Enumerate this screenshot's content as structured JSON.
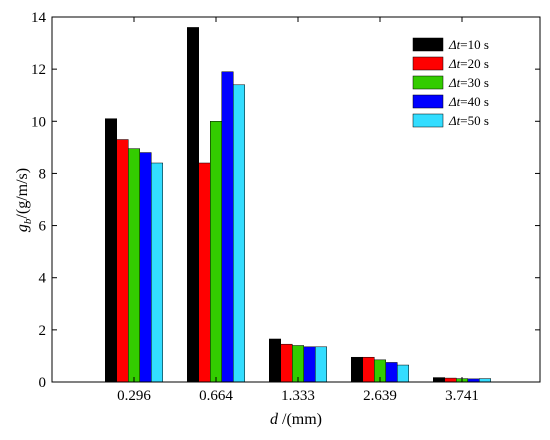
{
  "chart_data": {
    "type": "bar",
    "xlabel_var": "d",
    "xlabel_unit": " /(mm)",
    "ylabel_var": "g",
    "ylabel_sub": "b",
    "ylabel_unit": "/(g/m/s)",
    "categories": [
      "0.296",
      "0.664",
      "1.333",
      "2.639",
      "3.741"
    ],
    "yticks": [
      "0",
      "2",
      "4",
      "6",
      "8",
      "10",
      "12",
      "14"
    ],
    "ylim": [
      0,
      14
    ],
    "grid": false,
    "legend_position": "top-right",
    "legend_prefix": "Δt",
    "series": [
      {
        "name": "=10 s",
        "color": "#000000",
        "values": [
          10.1,
          13.6,
          1.65,
          0.95,
          0.17
        ]
      },
      {
        "name": "=20 s",
        "color": "#ff0000",
        "values": [
          9.3,
          8.4,
          1.45,
          0.95,
          0.15
        ]
      },
      {
        "name": "=30 s",
        "color": "#33cc00",
        "values": [
          8.95,
          10.0,
          1.4,
          0.85,
          0.13
        ]
      },
      {
        "name": "=40 s",
        "color": "#0000ff",
        "values": [
          8.8,
          11.9,
          1.35,
          0.75,
          0.12
        ]
      },
      {
        "name": "=50 s",
        "color": "#33ddff",
        "values": [
          8.4,
          11.4,
          1.35,
          0.65,
          0.13
        ]
      }
    ]
  }
}
